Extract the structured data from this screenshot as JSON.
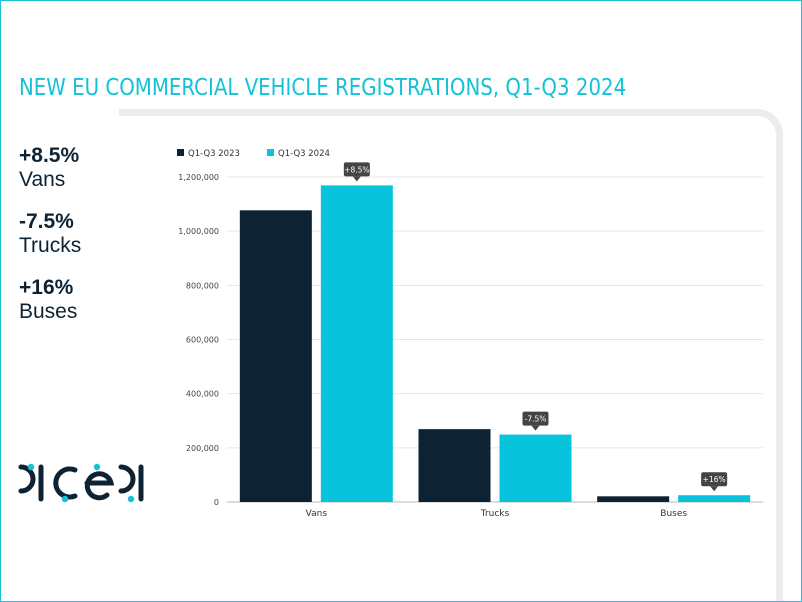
{
  "title": "NEW EU COMMERCIAL VEHICLE REGISTRATIONS, Q1-Q3 2024",
  "stats": [
    {
      "value": "+8.5%",
      "label": "Vans"
    },
    {
      "value": "-7.5%",
      "label": "Trucks"
    },
    {
      "value": "+16%",
      "label": "Buses"
    }
  ],
  "logo": {
    "text": "acea"
  },
  "colors": {
    "accent": "#14c2d6",
    "dark": "#0d2233",
    "bar2023": "#0d2233",
    "bar2024": "#08c3dc",
    "badge": "#444444"
  },
  "chart_data": {
    "type": "bar",
    "title": "",
    "xlabel": "",
    "ylabel": "",
    "categories": [
      "Vans",
      "Trucks",
      "Buses"
    ],
    "series": [
      {
        "name": "Q1-Q3 2023",
        "values": [
          1077000,
          269000,
          21000
        ]
      },
      {
        "name": "Q1-Q3 2024",
        "values": [
          1169000,
          249000,
          25000
        ]
      }
    ],
    "annotations": [
      "+8.5%",
      "-7.5%",
      "+16%"
    ],
    "ylim": [
      0,
      1200000
    ],
    "yticks": [
      0,
      200000,
      400000,
      600000,
      800000,
      1000000,
      1200000
    ],
    "ytick_labels": [
      "0",
      "200,000",
      "400,000",
      "600,000",
      "800,000",
      "1,000,000",
      "1,200,000"
    ],
    "grid": true,
    "legend": "top-left"
  }
}
